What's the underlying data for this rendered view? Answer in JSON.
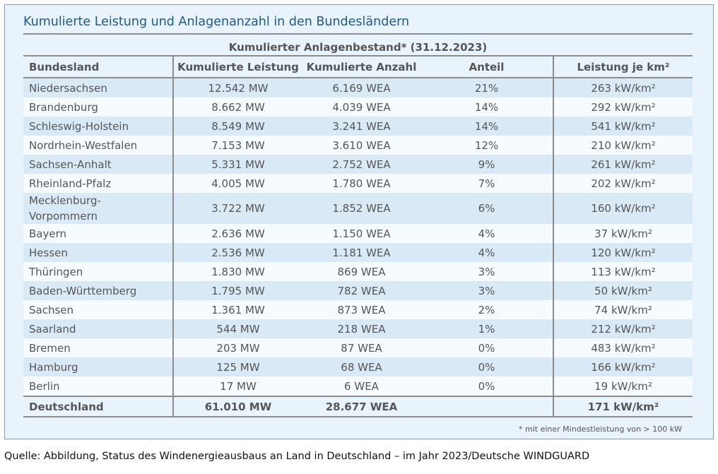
{
  "title": "Kumulierte Leistung und Anlagenanzahl in den Bundesländern",
  "super_header": "Kumulierter Anlagenbestand* (31.12.2023)",
  "columns": [
    "Bundesland",
    "Kumulierte Leistung",
    "Kumulierte Anzahl",
    "Anteil",
    "Leistung je km²"
  ],
  "rows": [
    {
      "land": "Niedersachsen",
      "leistung": "12.542 MW",
      "anzahl": "6.169 WEA",
      "anteil": "21%",
      "dichte": "263 kW/km²"
    },
    {
      "land": "Brandenburg",
      "leistung": "8.662 MW",
      "anzahl": "4.039 WEA",
      "anteil": "14%",
      "dichte": "292 kW/km²"
    },
    {
      "land": "Schleswig-Holstein",
      "leistung": "8.549 MW",
      "anzahl": "3.241 WEA",
      "anteil": "14%",
      "dichte": "541 kW/km²"
    },
    {
      "land": "Nordrhein-Westfalen",
      "leistung": "7.153 MW",
      "anzahl": "3.610 WEA",
      "anteil": "12%",
      "dichte": "210 kW/km²"
    },
    {
      "land": "Sachsen-Anhalt",
      "leistung": "5.331 MW",
      "anzahl": "2.752 WEA",
      "anteil": "9%",
      "dichte": "261 kW/km²"
    },
    {
      "land": "Rheinland-Pfalz",
      "leistung": "4.005 MW",
      "anzahl": "1.780 WEA",
      "anteil": "7%",
      "dichte": "202 kW/km²"
    },
    {
      "land": "Mecklenburg-\nVorpommern",
      "leistung": "3.722 MW",
      "anzahl": "1.852 WEA",
      "anteil": "6%",
      "dichte": "160 kW/km²"
    },
    {
      "land": "Bayern",
      "leistung": "2.636 MW",
      "anzahl": "1.150 WEA",
      "anteil": "4%",
      "dichte": "37 kW/km²"
    },
    {
      "land": "Hessen",
      "leistung": "2.536 MW",
      "anzahl": "1.181 WEA",
      "anteil": "4%",
      "dichte": "120 kW/km²"
    },
    {
      "land": "Thüringen",
      "leistung": "1.830 MW",
      "anzahl": "869 WEA",
      "anteil": "3%",
      "dichte": "113 kW/km²"
    },
    {
      "land": "Baden-Württemberg",
      "leistung": "1.795 MW",
      "anzahl": "782 WEA",
      "anteil": "3%",
      "dichte": "50 kW/km²"
    },
    {
      "land": "Sachsen",
      "leistung": "1.361 MW",
      "anzahl": "873 WEA",
      "anteil": "2%",
      "dichte": "74 kW/km²"
    },
    {
      "land": "Saarland",
      "leistung": "544 MW",
      "anzahl": "218 WEA",
      "anteil": "1%",
      "dichte": "212 kW/km²"
    },
    {
      "land": "Bremen",
      "leistung": "203 MW",
      "anzahl": "87 WEA",
      "anteil": "0%",
      "dichte": "483 kW/km²"
    },
    {
      "land": "Hamburg",
      "leistung": "125 MW",
      "anzahl": "68 WEA",
      "anteil": "0%",
      "dichte": "166 kW/km²"
    },
    {
      "land": "Berlin",
      "leistung": "17 MW",
      "anzahl": "6 WEA",
      "anteil": "0%",
      "dichte": "19 kW/km²"
    }
  ],
  "total": {
    "land": "Deutschland",
    "leistung": "61.010 MW",
    "anzahl": "28.677 WEA",
    "anteil": "",
    "dichte": "171 kW/km²"
  },
  "footnote": "* mit einer Mindestleistung von > 100 kW",
  "source": "Quelle: Abbildung, Status des Windenergieausbaus an Land in Deutschland – im Jahr 2023/Deutsche WINDGUARD",
  "colors": {
    "panel_bg": "#e8f3fc",
    "row_shade": "#d9e9f6",
    "row_light": "#f6fbff",
    "title": "#1f5a8c",
    "rule": "#8c8c8c"
  }
}
